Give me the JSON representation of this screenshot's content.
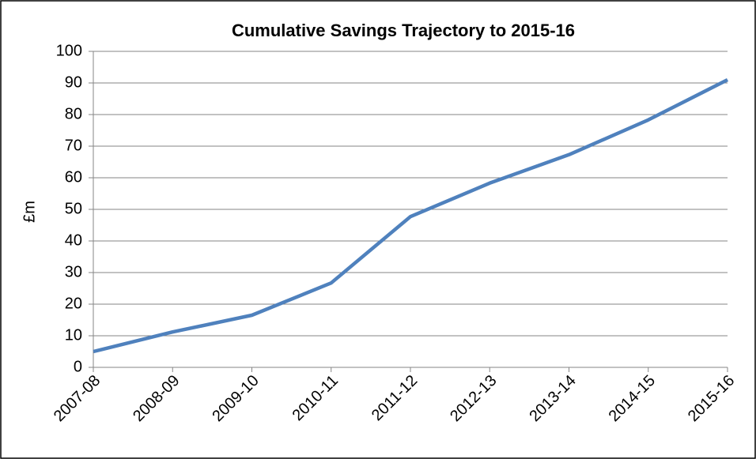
{
  "chart_data": {
    "type": "line",
    "title": "Cumulative Savings Trajectory to 2015-16",
    "y_label": "£m",
    "categories": [
      "2007-08",
      "2008-09",
      "2009-10",
      "2010-11",
      "2011-12",
      "2012-13",
      "2013-14",
      "2014-15",
      "2015-16"
    ],
    "series": [
      {
        "name": "Cumulative savings",
        "color": "#4f81bd",
        "values": [
          5,
          11.2,
          16.5,
          26.7,
          47.7,
          58.3,
          67.3,
          78.3,
          91
        ]
      }
    ],
    "ylim": [
      0,
      100
    ],
    "yticks": [
      0,
      10,
      20,
      30,
      40,
      50,
      60,
      70,
      80,
      90,
      100
    ],
    "grid": true,
    "legend": false
  }
}
